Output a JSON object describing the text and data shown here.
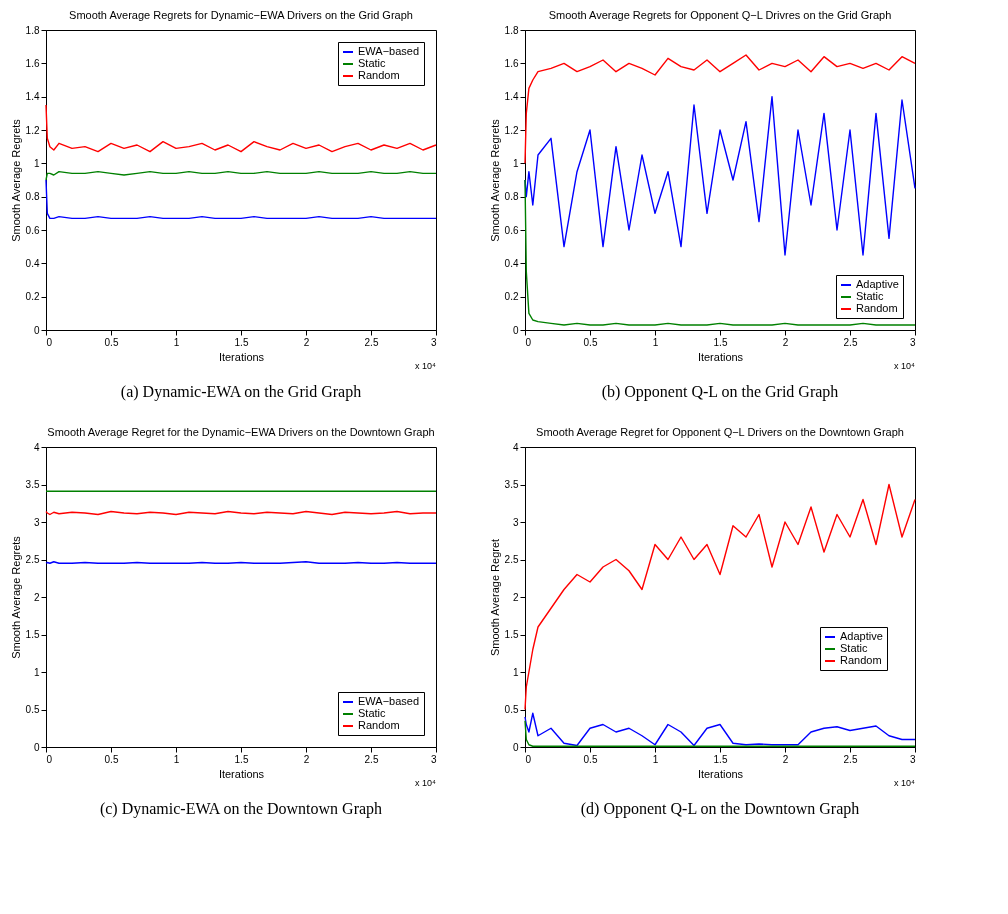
{
  "chart_data": [
    {
      "type": "line",
      "title": "Smooth Average Regrets for Dynamic−EWA Drivers on the Grid Graph",
      "xlabel": "Iterations",
      "ylabel": "Smooth Average Regrets",
      "annotations": [
        "x 10⁴",
        "(a) Dynamic-EWA on the Grid Graph"
      ],
      "legend": "top right",
      "grid": false,
      "xlim": [
        0,
        3
      ],
      "xticks": [
        0,
        0.5,
        1,
        1.5,
        2,
        2.5,
        3
      ],
      "ylim": [
        0,
        1.8
      ],
      "yticks": [
        0,
        0.2,
        0.4,
        0.6,
        0.8,
        1,
        1.2,
        1.4,
        1.6,
        1.8
      ],
      "x": [
        0,
        0.01,
        0.03,
        0.06,
        0.1,
        0.2,
        0.3,
        0.4,
        0.5,
        0.6,
        0.7,
        0.8,
        0.9,
        1.0,
        1.1,
        1.2,
        1.3,
        1.4,
        1.5,
        1.6,
        1.7,
        1.8,
        1.9,
        2.0,
        2.1,
        2.2,
        2.3,
        2.4,
        2.5,
        2.6,
        2.7,
        2.8,
        2.9,
        3.0
      ],
      "series": [
        {
          "name": "EWA−based",
          "color": "#0000ff",
          "values": [
            0.9,
            0.7,
            0.67,
            0.67,
            0.68,
            0.67,
            0.67,
            0.68,
            0.67,
            0.67,
            0.67,
            0.68,
            0.67,
            0.67,
            0.67,
            0.68,
            0.67,
            0.67,
            0.67,
            0.68,
            0.67,
            0.67,
            0.67,
            0.67,
            0.68,
            0.67,
            0.67,
            0.67,
            0.68,
            0.67,
            0.67,
            0.67,
            0.67,
            0.67
          ]
        },
        {
          "name": "Static",
          "color": "#008000",
          "values": [
            0.9,
            0.94,
            0.94,
            0.93,
            0.95,
            0.94,
            0.94,
            0.95,
            0.94,
            0.93,
            0.94,
            0.95,
            0.94,
            0.94,
            0.95,
            0.94,
            0.94,
            0.95,
            0.94,
            0.94,
            0.95,
            0.94,
            0.94,
            0.94,
            0.95,
            0.94,
            0.94,
            0.94,
            0.95,
            0.94,
            0.94,
            0.95,
            0.94,
            0.94
          ]
        },
        {
          "name": "Random",
          "color": "#ff0000",
          "values": [
            1.35,
            1.15,
            1.1,
            1.08,
            1.12,
            1.09,
            1.1,
            1.07,
            1.12,
            1.09,
            1.11,
            1.07,
            1.13,
            1.09,
            1.1,
            1.12,
            1.08,
            1.11,
            1.07,
            1.13,
            1.1,
            1.08,
            1.12,
            1.09,
            1.11,
            1.07,
            1.1,
            1.12,
            1.08,
            1.11,
            1.09,
            1.12,
            1.08,
            1.11
          ]
        }
      ]
    },
    {
      "type": "line",
      "title": "Smooth Average Regrets for Opponent Q−L Drivres on the Grid Graph",
      "xlabel": "Iterations",
      "ylabel": "Smooth Average Regrets",
      "annotations": [
        "x 10⁴",
        "(b) Opponent Q-L on the Grid Graph"
      ],
      "legend": "bottom right",
      "grid": false,
      "xlim": [
        0,
        3
      ],
      "xticks": [
        0,
        0.5,
        1,
        1.5,
        2,
        2.5,
        3
      ],
      "ylim": [
        0,
        1.8
      ],
      "yticks": [
        0,
        0.2,
        0.4,
        0.6,
        0.8,
        1,
        1.2,
        1.4,
        1.6,
        1.8
      ],
      "x": [
        0,
        0.01,
        0.03,
        0.06,
        0.1,
        0.2,
        0.3,
        0.4,
        0.5,
        0.6,
        0.7,
        0.8,
        0.9,
        1.0,
        1.1,
        1.2,
        1.3,
        1.4,
        1.5,
        1.6,
        1.7,
        1.8,
        1.9,
        2.0,
        2.1,
        2.2,
        2.3,
        2.4,
        2.5,
        2.6,
        2.7,
        2.8,
        2.9,
        3.0
      ],
      "series": [
        {
          "name": "Adaptive",
          "color": "#0000ff",
          "values": [
            0.9,
            0.8,
            0.95,
            0.75,
            1.05,
            1.15,
            0.5,
            0.95,
            1.2,
            0.5,
            1.1,
            0.6,
            1.05,
            0.7,
            0.95,
            0.5,
            1.35,
            0.7,
            1.2,
            0.9,
            1.25,
            0.65,
            1.4,
            0.45,
            1.2,
            0.75,
            1.3,
            0.6,
            1.2,
            0.45,
            1.3,
            0.55,
            1.38,
            0.85
          ]
        },
        {
          "name": "Static",
          "color": "#008000",
          "values": [
            0.9,
            0.35,
            0.1,
            0.06,
            0.05,
            0.04,
            0.03,
            0.04,
            0.03,
            0.03,
            0.04,
            0.03,
            0.03,
            0.03,
            0.04,
            0.03,
            0.03,
            0.03,
            0.04,
            0.03,
            0.03,
            0.03,
            0.03,
            0.04,
            0.03,
            0.03,
            0.03,
            0.03,
            0.03,
            0.04,
            0.03,
            0.03,
            0.03,
            0.03
          ]
        },
        {
          "name": "Random",
          "color": "#ff0000",
          "values": [
            1.0,
            1.3,
            1.45,
            1.5,
            1.55,
            1.57,
            1.6,
            1.55,
            1.58,
            1.62,
            1.55,
            1.6,
            1.57,
            1.53,
            1.63,
            1.58,
            1.56,
            1.62,
            1.55,
            1.6,
            1.65,
            1.56,
            1.6,
            1.58,
            1.62,
            1.55,
            1.64,
            1.58,
            1.6,
            1.57,
            1.6,
            1.56,
            1.64,
            1.6
          ]
        }
      ]
    },
    {
      "type": "line",
      "title": "Smooth Average Regret for the Dynamic−EWA Drivers on the Downtown Graph",
      "xlabel": "Iterations",
      "ylabel": "Smooth Average Regrets",
      "annotations": [
        "x 10⁴",
        "(c) Dynamic-EWA on the Downtown Graph"
      ],
      "legend": "bottom right",
      "grid": false,
      "xlim": [
        0,
        3
      ],
      "xticks": [
        0,
        0.5,
        1,
        1.5,
        2,
        2.5,
        3
      ],
      "ylim": [
        0,
        4
      ],
      "yticks": [
        0,
        0.5,
        1,
        1.5,
        2,
        2.5,
        3,
        3.5,
        4
      ],
      "x": [
        0,
        0.01,
        0.03,
        0.06,
        0.1,
        0.2,
        0.3,
        0.4,
        0.5,
        0.6,
        0.7,
        0.8,
        0.9,
        1.0,
        1.1,
        1.2,
        1.3,
        1.4,
        1.5,
        1.6,
        1.7,
        1.8,
        1.9,
        2.0,
        2.1,
        2.2,
        2.3,
        2.4,
        2.5,
        2.6,
        2.7,
        2.8,
        2.9,
        3.0
      ],
      "series": [
        {
          "name": "EWA−based",
          "color": "#0000ff",
          "values": [
            2.45,
            2.46,
            2.45,
            2.47,
            2.45,
            2.45,
            2.46,
            2.45,
            2.45,
            2.45,
            2.46,
            2.45,
            2.45,
            2.45,
            2.45,
            2.46,
            2.45,
            2.45,
            2.46,
            2.45,
            2.45,
            2.45,
            2.46,
            2.47,
            2.45,
            2.45,
            2.45,
            2.46,
            2.45,
            2.45,
            2.46,
            2.45,
            2.45,
            2.45
          ]
        },
        {
          "name": "Static",
          "color": "#008000",
          "values": [
            3.41,
            3.41,
            3.41,
            3.41,
            3.41,
            3.41,
            3.41,
            3.41,
            3.41,
            3.41,
            3.41,
            3.41,
            3.41,
            3.41,
            3.41,
            3.41,
            3.41,
            3.41,
            3.41,
            3.41,
            3.41,
            3.41,
            3.41,
            3.41,
            3.41,
            3.41,
            3.41,
            3.41,
            3.41,
            3.41,
            3.41,
            3.41,
            3.41,
            3.41
          ]
        },
        {
          "name": "Random",
          "color": "#ff0000",
          "values": [
            3.14,
            3.12,
            3.1,
            3.13,
            3.11,
            3.13,
            3.12,
            3.1,
            3.14,
            3.12,
            3.11,
            3.13,
            3.12,
            3.1,
            3.13,
            3.12,
            3.11,
            3.14,
            3.12,
            3.11,
            3.13,
            3.12,
            3.11,
            3.14,
            3.12,
            3.1,
            3.13,
            3.12,
            3.11,
            3.12,
            3.14,
            3.11,
            3.12,
            3.12
          ]
        }
      ]
    },
    {
      "type": "line",
      "title": "Smooth Average Regret for Opponent Q−L Drivers on the Downtown Graph",
      "xlabel": "Iterations",
      "ylabel": "Smooth Average Regret",
      "annotations": [
        "x 10⁴",
        "(d) Opponent Q-L on the Downtown Graph"
      ],
      "legend": "right",
      "grid": false,
      "xlim": [
        0,
        3
      ],
      "xticks": [
        0,
        0.5,
        1,
        1.5,
        2,
        2.5,
        3
      ],
      "ylim": [
        0,
        4
      ],
      "yticks": [
        0,
        0.5,
        1,
        1.5,
        2,
        2.5,
        3,
        3.5,
        4
      ],
      "x": [
        0,
        0.01,
        0.03,
        0.06,
        0.1,
        0.2,
        0.3,
        0.4,
        0.5,
        0.6,
        0.7,
        0.8,
        0.9,
        1.0,
        1.1,
        1.2,
        1.3,
        1.4,
        1.5,
        1.6,
        1.7,
        1.8,
        1.9,
        2.0,
        2.1,
        2.2,
        2.3,
        2.4,
        2.5,
        2.6,
        2.7,
        2.8,
        2.9,
        3.0
      ],
      "series": [
        {
          "name": "Adaptive",
          "color": "#0000ff",
          "values": [
            0.4,
            0.3,
            0.2,
            0.45,
            0.15,
            0.25,
            0.05,
            0.02,
            0.25,
            0.3,
            0.2,
            0.25,
            0.15,
            0.03,
            0.3,
            0.2,
            0.02,
            0.25,
            0.3,
            0.05,
            0.03,
            0.04,
            0.03,
            0.03,
            0.03,
            0.2,
            0.25,
            0.27,
            0.22,
            0.25,
            0.28,
            0.15,
            0.1,
            0.1
          ]
        },
        {
          "name": "Static",
          "color": "#008000",
          "values": [
            0.35,
            0.1,
            0.03,
            0.01,
            0.01,
            0.01,
            0.01,
            0.01,
            0.01,
            0.01,
            0.01,
            0.01,
            0.01,
            0.01,
            0.01,
            0.01,
            0.01,
            0.01,
            0.01,
            0.01,
            0.01,
            0.01,
            0.01,
            0.01,
            0.01,
            0.01,
            0.01,
            0.01,
            0.01,
            0.01,
            0.01,
            0.01,
            0.01,
            0.01
          ]
        },
        {
          "name": "Random",
          "color": "#ff0000",
          "values": [
            0.5,
            0.8,
            1.0,
            1.3,
            1.6,
            1.85,
            2.1,
            2.3,
            2.2,
            2.4,
            2.5,
            2.35,
            2.1,
            2.7,
            2.5,
            2.8,
            2.5,
            2.7,
            2.3,
            2.95,
            2.8,
            3.1,
            2.4,
            3.0,
            2.7,
            3.2,
            2.6,
            3.1,
            2.8,
            3.3,
            2.7,
            3.5,
            2.8,
            3.3
          ]
        }
      ]
    }
  ]
}
